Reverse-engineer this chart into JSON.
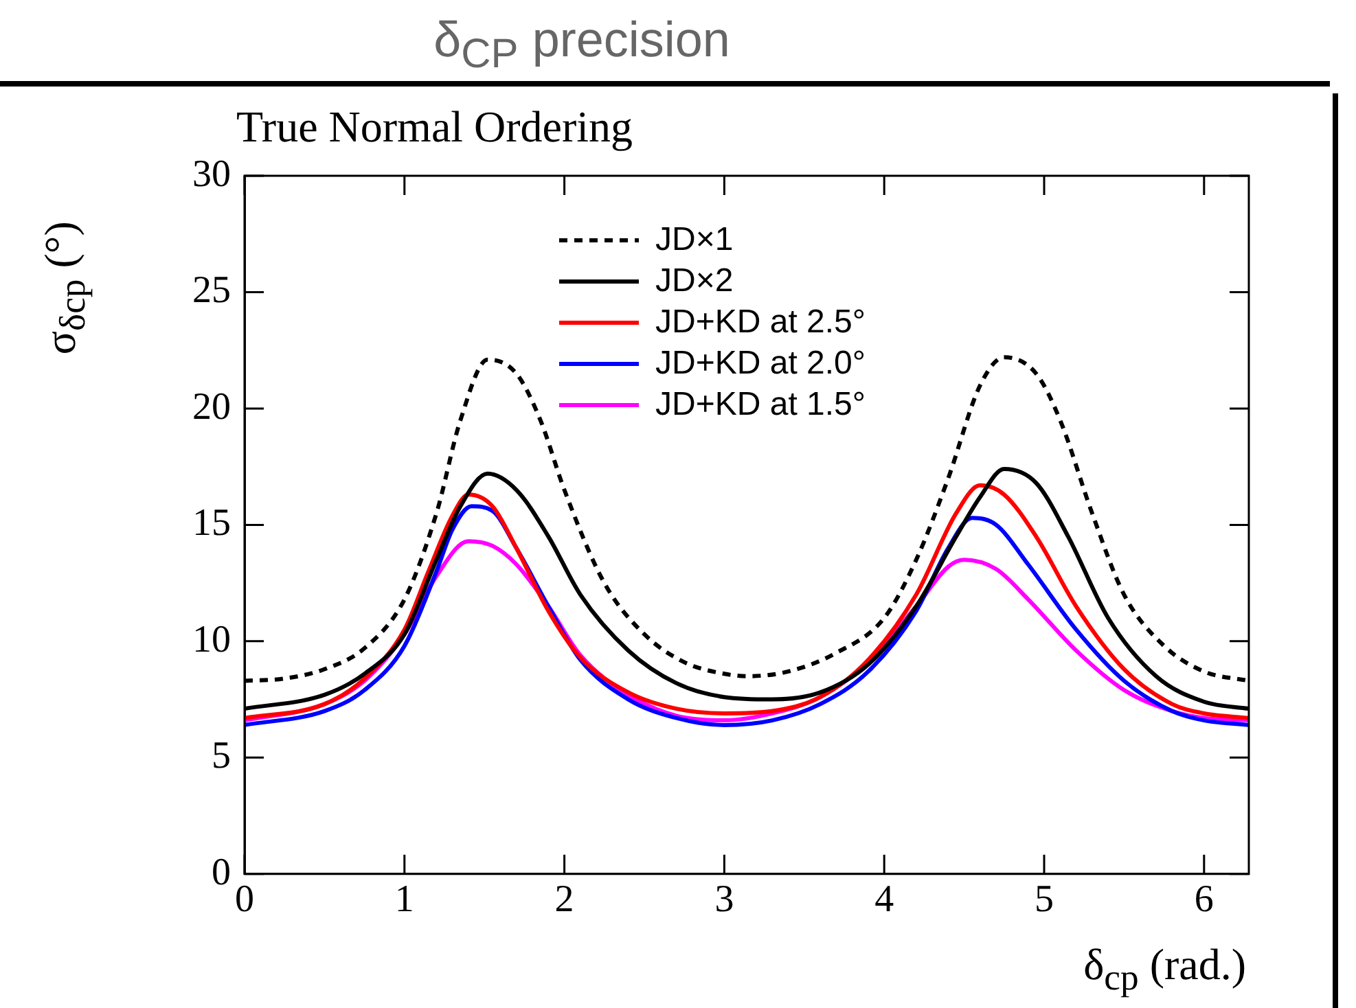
{
  "chart_data": {
    "type": "line",
    "title": "δ$_{CP}$ precision",
    "subtitle": "True Normal Ordering",
    "xlabel": "δ$_{cp}$ (rad.)",
    "ylabel": "σ$_{δcp}$ (°)",
    "xlim": [
      0,
      6.28
    ],
    "xticks": [
      0,
      1,
      2,
      3,
      4,
      5,
      6
    ],
    "ylim": [
      0,
      30
    ],
    "yticks": [
      0,
      5,
      10,
      15,
      20,
      25,
      30
    ],
    "grid": false,
    "legend": "top",
    "marker": "none",
    "series": [
      {
        "name": "JD×1",
        "color": "#000000",
        "line_style": "dashed",
        "x": [
          0,
          0.25,
          0.5,
          0.75,
          1.0,
          1.2,
          1.35,
          1.52,
          1.7,
          1.85,
          2.0,
          2.25,
          2.5,
          2.75,
          3.0,
          3.15,
          3.4,
          3.7,
          4.0,
          4.2,
          4.4,
          4.6,
          4.75,
          4.95,
          5.1,
          5.3,
          5.5,
          5.75,
          6.0,
          6.28
        ],
        "values": [
          8.3,
          8.4,
          8.8,
          9.7,
          11.8,
          15.5,
          19.5,
          22.1,
          21.5,
          19.5,
          16.5,
          12.5,
          10.3,
          9.1,
          8.6,
          8.5,
          8.7,
          9.5,
          11.0,
          13.5,
          17.0,
          21.0,
          22.2,
          21.5,
          19.5,
          15.5,
          12.0,
          9.8,
          8.7,
          8.3
        ]
      },
      {
        "name": "JD×2",
        "color": "#000000",
        "line_style": "solid",
        "x": [
          0,
          0.5,
          0.75,
          1.0,
          1.2,
          1.35,
          1.52,
          1.7,
          1.9,
          2.1,
          2.4,
          2.7,
          3.0,
          3.3,
          3.6,
          3.9,
          4.2,
          4.45,
          4.6,
          4.75,
          4.95,
          5.15,
          5.4,
          5.7,
          6.0,
          6.28
        ],
        "values": [
          7.1,
          7.7,
          8.6,
          10.3,
          13.5,
          15.8,
          17.2,
          16.5,
          14.5,
          12.0,
          9.6,
          8.2,
          7.6,
          7.5,
          7.8,
          9.0,
          11.5,
          14.5,
          16.2,
          17.4,
          16.8,
          14.5,
          11.0,
          8.5,
          7.4,
          7.1
        ]
      },
      {
        "name": "JD+KD at 2.5°",
        "color": "#ff0000",
        "line_style": "solid",
        "x": [
          0,
          0.5,
          0.75,
          1.0,
          1.15,
          1.3,
          1.4,
          1.55,
          1.7,
          1.9,
          2.1,
          2.4,
          2.7,
          3.0,
          3.3,
          3.6,
          3.9,
          4.2,
          4.45,
          4.6,
          4.75,
          4.95,
          5.2,
          5.5,
          5.8,
          6.0,
          6.28
        ],
        "values": [
          6.7,
          7.3,
          8.4,
          10.5,
          13.0,
          15.4,
          16.3,
          15.8,
          14.0,
          11.3,
          9.3,
          7.8,
          7.1,
          6.9,
          7.0,
          7.6,
          9.2,
          12.0,
          15.5,
          16.7,
          16.3,
          14.5,
          11.5,
          8.8,
          7.3,
          6.9,
          6.7
        ]
      },
      {
        "name": "JD+KD at 2.0°",
        "color": "#0000ff",
        "line_style": "solid",
        "x": [
          0,
          0.5,
          0.75,
          1.0,
          1.2,
          1.3,
          1.42,
          1.55,
          1.7,
          1.9,
          2.1,
          2.4,
          2.7,
          3.0,
          3.3,
          3.6,
          3.9,
          4.2,
          4.4,
          4.55,
          4.7,
          4.9,
          5.2,
          5.5,
          5.8,
          6.0,
          6.28
        ],
        "values": [
          6.4,
          7.0,
          7.9,
          9.8,
          13.0,
          14.8,
          15.8,
          15.6,
          14.0,
          11.5,
          9.2,
          7.5,
          6.7,
          6.4,
          6.6,
          7.3,
          8.7,
          11.3,
          14.0,
          15.3,
          15.0,
          13.3,
          10.5,
          8.3,
          7.0,
          6.6,
          6.4
        ]
      },
      {
        "name": "JD+KD at 1.5°",
        "color": "#ff00ff",
        "line_style": "solid",
        "x": [
          0,
          0.5,
          0.75,
          1.0,
          1.2,
          1.4,
          1.55,
          1.7,
          1.9,
          2.1,
          2.4,
          2.7,
          3.0,
          3.3,
          3.6,
          3.9,
          4.2,
          4.4,
          4.5,
          4.7,
          4.9,
          5.2,
          5.5,
          5.8,
          6.0,
          6.28
        ],
        "values": [
          6.6,
          7.3,
          8.3,
          10.3,
          12.8,
          14.3,
          14.1,
          13.3,
          11.5,
          9.4,
          7.7,
          6.8,
          6.6,
          6.9,
          7.6,
          9.1,
          11.5,
          13.2,
          13.5,
          13.1,
          11.8,
          9.6,
          7.9,
          7.0,
          6.7,
          6.6
        ]
      }
    ]
  }
}
